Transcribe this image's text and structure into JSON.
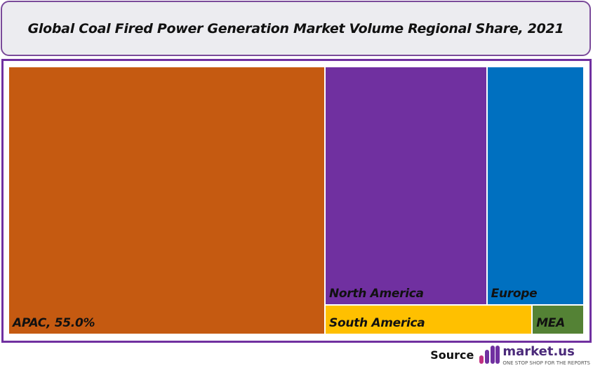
{
  "chart_data": {
    "type": "treemap",
    "title": "Global Coal Fired Power Generation Market Volume Regional Share, 2021",
    "unit": "%",
    "series": [
      {
        "name": "APAC",
        "value": 55.0,
        "label": "APAC, 55.0%",
        "color": "#c55a11"
      },
      {
        "name": "North America",
        "value": 25,
        "label": "North America",
        "color": "#7030a0"
      },
      {
        "name": "Europe",
        "value": 15,
        "label": "Europe",
        "color": "#0070c0"
      },
      {
        "name": "South America",
        "value": 4,
        "label": "South America",
        "color": "#ffc000"
      },
      {
        "name": "MEA",
        "value": 1,
        "label": "MEA",
        "color": "#548235"
      }
    ]
  },
  "footer": {
    "source_label": "Source",
    "brand": "market.us",
    "tagline": "ONE STOP SHOP FOR THE REPORTS"
  }
}
